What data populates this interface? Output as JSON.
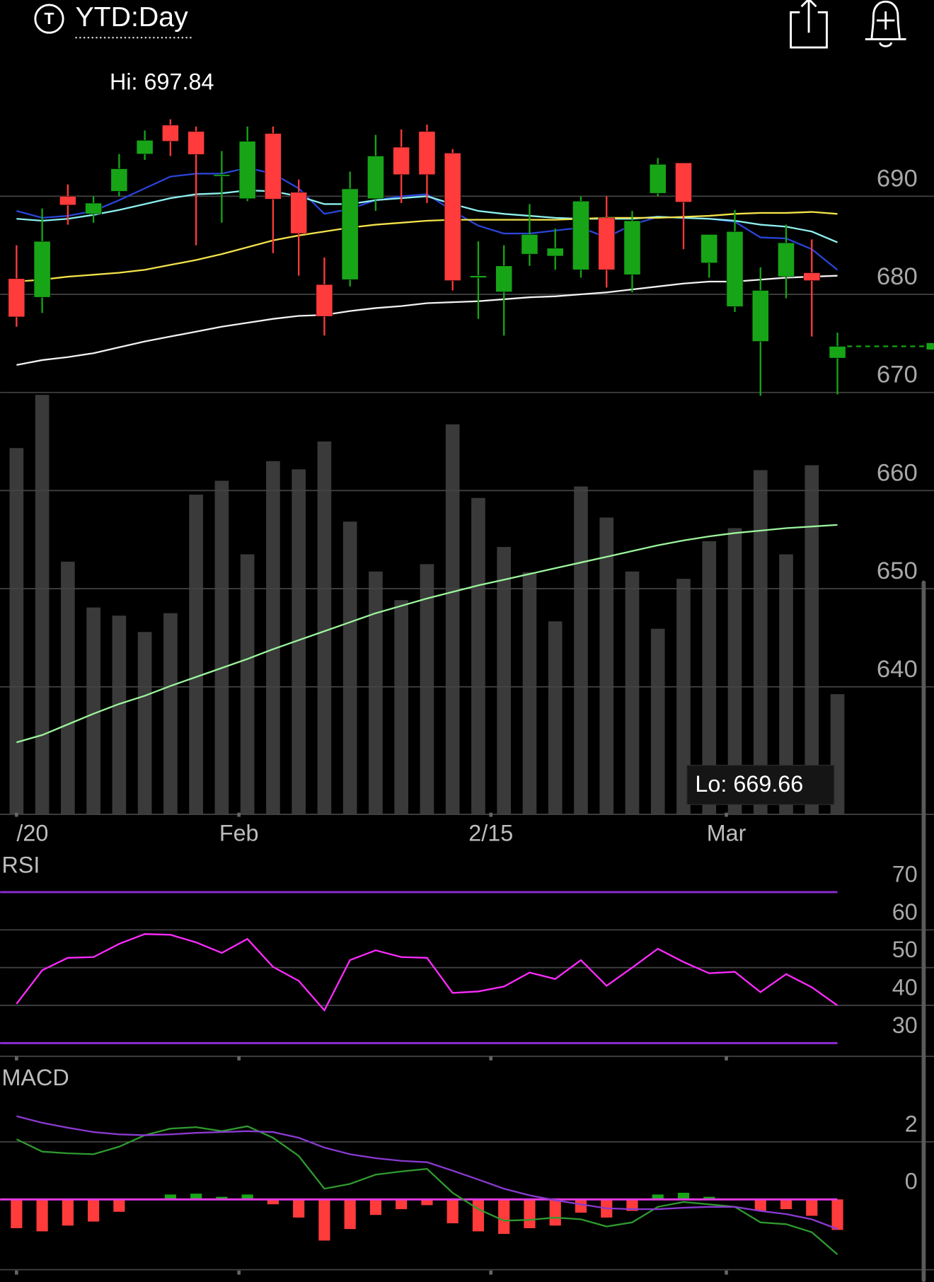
{
  "header": {
    "badge": "T",
    "title": "YTD:Day"
  },
  "chart_data": [
    {
      "type": "candlestick",
      "categories": [
        null,
        null,
        null,
        null,
        null,
        null,
        null,
        null,
        null,
        null,
        null,
        null,
        null,
        null,
        null,
        null,
        null,
        null,
        null,
        null,
        null,
        null,
        null,
        null,
        null,
        null,
        null,
        null,
        null,
        null,
        null,
        null,
        null
      ],
      "xlim": [
        -0.64,
        35.76
      ],
      "xticks": [
        {
          "value": 0,
          "label": "/20"
        },
        {
          "value": 8.67,
          "label": "Feb"
        },
        {
          "value": 18.49,
          "label": "2/15"
        },
        {
          "value": 27.67,
          "label": "Mar"
        }
      ],
      "open": [
        681.6,
        679.7,
        690,
        688.2,
        690.5,
        694.3,
        697.25,
        696.6,
        692.1,
        689.75,
        696.4,
        690.4,
        681,
        681.5,
        689.75,
        695,
        696.6,
        694.4,
        681.7,
        680.25,
        684.1,
        683.9,
        682.5,
        687.8,
        682,
        690.3,
        693.4,
        683.2,
        678.75,
        675.2,
        681.8,
        682.2,
        673.5
      ],
      "high": [
        685,
        688.75,
        691.2,
        690,
        694.3,
        696.7,
        697.84,
        697.1,
        694.6,
        697.1,
        697.1,
        691.7,
        683.75,
        692.5,
        696.25,
        696.8,
        697.3,
        694.8,
        685.4,
        685,
        689.2,
        686.7,
        690,
        690,
        688.5,
        693.9,
        693.4,
        686.1,
        688.6,
        682.75,
        687.1,
        685.6,
        676.1
      ],
      "low": [
        676.7,
        678.1,
        687.1,
        687.3,
        690,
        693.7,
        694.1,
        685,
        687.3,
        689.5,
        684.2,
        681.9,
        675.8,
        680.8,
        688.5,
        689.3,
        689.3,
        680.4,
        677.5,
        675.8,
        682.9,
        682.5,
        681.7,
        680.7,
        680.2,
        690,
        684.6,
        681.7,
        678.2,
        669.66,
        679.6,
        675.7,
        669.8
      ],
      "close": [
        677.7,
        685.4,
        689.1,
        689.3,
        692.8,
        695.7,
        695.6,
        694.25,
        692.2,
        695.6,
        689.7,
        686.2,
        677.75,
        690.75,
        694.1,
        692.2,
        692.2,
        681.4,
        681.9,
        682.9,
        686.1,
        684.7,
        689.5,
        682.5,
        687.5,
        693.25,
        689.4,
        686.1,
        686.4,
        680.4,
        685.25,
        681.4,
        674.7
      ],
      "up_color": "#17a517",
      "down_color": "#ff3b3b",
      "ylim": [
        627,
        700
      ],
      "yticks": [
        640,
        650,
        660,
        670,
        680,
        690
      ],
      "grid": true,
      "hi_label": "Hi: 697.84",
      "lo_label": "Lo: 669.66",
      "lines": [
        {
          "color": "#2a45d8",
          "values": [
            688.5,
            687.8,
            688,
            688.5,
            689.6,
            690.8,
            692,
            692.3,
            692.3,
            692.9,
            692.3,
            690.8,
            688.2,
            688.7,
            689.6,
            690,
            690.2,
            688.5,
            687,
            686.2,
            686.2,
            686.5,
            686.8,
            685.8,
            687.1,
            687.9,
            687.8,
            687.7,
            687.4,
            685.8,
            685.7,
            684.6,
            682.5
          ]
        },
        {
          "color": "#8ef0f0",
          "values": [
            687.7,
            687.5,
            687.7,
            688.1,
            688.6,
            689.2,
            689.8,
            690.2,
            690.3,
            690.6,
            690.5,
            690,
            689.2,
            689.2,
            689.6,
            689.8,
            690,
            689.2,
            688.5,
            688.2,
            688,
            687.8,
            687.7,
            687.7,
            687.7,
            687.9,
            687.8,
            687.7,
            687.5,
            687.1,
            686.9,
            686.4,
            685.3
          ]
        },
        {
          "color": "#f2e24a",
          "values": [
            681.3,
            681.5,
            681.8,
            682,
            682.2,
            682.5,
            683,
            683.5,
            684.1,
            684.8,
            685.5,
            686,
            686.4,
            686.8,
            687.1,
            687.3,
            687.5,
            687.6,
            687.6,
            687.6,
            687.6,
            687.6,
            687.7,
            687.8,
            687.8,
            687.8,
            687.9,
            688,
            688.2,
            688.3,
            688.3,
            688.4,
            688.2
          ]
        },
        {
          "color": "#f2f2f2",
          "values": [
            672.8,
            673.3,
            673.6,
            674,
            674.6,
            675.2,
            675.7,
            676.2,
            676.7,
            677.1,
            677.5,
            677.8,
            677.9,
            678.3,
            678.6,
            678.8,
            679.1,
            679.2,
            679.3,
            679.5,
            679.7,
            679.8,
            680,
            680.2,
            680.5,
            680.8,
            681.1,
            681.3,
            681.3,
            681.5,
            681.7,
            681.8,
            681.9
          ]
        }
      ],
      "volume": {
        "color": "#3a3a3a",
        "ylim": [
          0,
          520
        ],
        "values": [
          448,
          513,
          309,
          253,
          243,
          223,
          246,
          391,
          408,
          318,
          432,
          422,
          456,
          358,
          297,
          262,
          306,
          477,
          387,
          327,
          296,
          236,
          401,
          363,
          297,
          227,
          288,
          334,
          350,
          421,
          318,
          427,
          147
        ],
        "ma_color": "#9cf59c",
        "ma": [
          88,
          97,
          110,
          123,
          135,
          145,
          157,
          168,
          179,
          190,
          202,
          213,
          224,
          235,
          246,
          255,
          264,
          272,
          280,
          287,
          294,
          301,
          308,
          315,
          322,
          329,
          335,
          340,
          344,
          347,
          350,
          352,
          354
        ]
      }
    },
    {
      "type": "line",
      "title": "RSI",
      "xlim": [
        -0.64,
        35.76
      ],
      "ylim": [
        26.5,
        80
      ],
      "yticks": [
        30,
        40,
        50,
        60,
        70
      ],
      "band_color": "#8e2bd6",
      "color": "#ff2bff",
      "values": [
        40.4,
        49.3,
        52.6,
        52.8,
        56.3,
        58.9,
        58.7,
        56.7,
        53.9,
        57.6,
        50.2,
        46.5,
        38.7,
        52,
        54.6,
        52.8,
        52.6,
        43.3,
        43.7,
        45,
        48.7,
        47,
        52,
        45.2,
        50,
        55,
        51.5,
        48.5,
        48.9,
        43.5,
        48.3,
        44.8,
        40
      ]
    },
    {
      "type": "macd",
      "title": "MACD",
      "xlim": [
        -0.64,
        35.76
      ],
      "ylim": [
        -2.5,
        4.6
      ],
      "yticks": [
        0,
        2
      ],
      "zero_color": "#e23be2",
      "up_color": "#17a517",
      "down_color": "#ff3b3b",
      "histogram": [
        -1,
        -1.11,
        -0.91,
        -0.77,
        -0.43,
        0,
        0.17,
        0.2,
        0.09,
        0.17,
        -0.17,
        -0.63,
        -1.43,
        -1.03,
        -0.54,
        -0.34,
        -0.2,
        -0.83,
        -1.11,
        -1.2,
        -1,
        -0.91,
        -0.46,
        -0.63,
        -0.4,
        0.17,
        0.23,
        0.09,
        0,
        -0.4,
        -0.34,
        -0.57,
        -1.06
      ],
      "series": [
        {
          "color": "#2f9a2f",
          "values": [
            2.09,
            1.66,
            1.6,
            1.57,
            1.83,
            2.23,
            2.46,
            2.51,
            2.37,
            2.54,
            2.14,
            1.51,
            0.37,
            0.54,
            0.86,
            0.97,
            1.06,
            0.23,
            -0.34,
            -0.74,
            -0.71,
            -0.63,
            -0.69,
            -0.94,
            -0.8,
            -0.26,
            -0.09,
            -0.17,
            -0.26,
            -0.8,
            -0.86,
            -1.14,
            -1.91
          ]
        },
        {
          "color": "#8a3ad0",
          "values": [
            2.89,
            2.66,
            2.49,
            2.34,
            2.26,
            2.23,
            2.26,
            2.31,
            2.34,
            2.37,
            2.34,
            2.14,
            1.8,
            1.57,
            1.43,
            1.34,
            1.29,
            1,
            0.69,
            0.37,
            0.14,
            -0.03,
            -0.17,
            -0.31,
            -0.34,
            -0.34,
            -0.29,
            -0.26,
            -0.26,
            -0.4,
            -0.51,
            -0.69,
            -1.03
          ]
        }
      ]
    }
  ]
}
